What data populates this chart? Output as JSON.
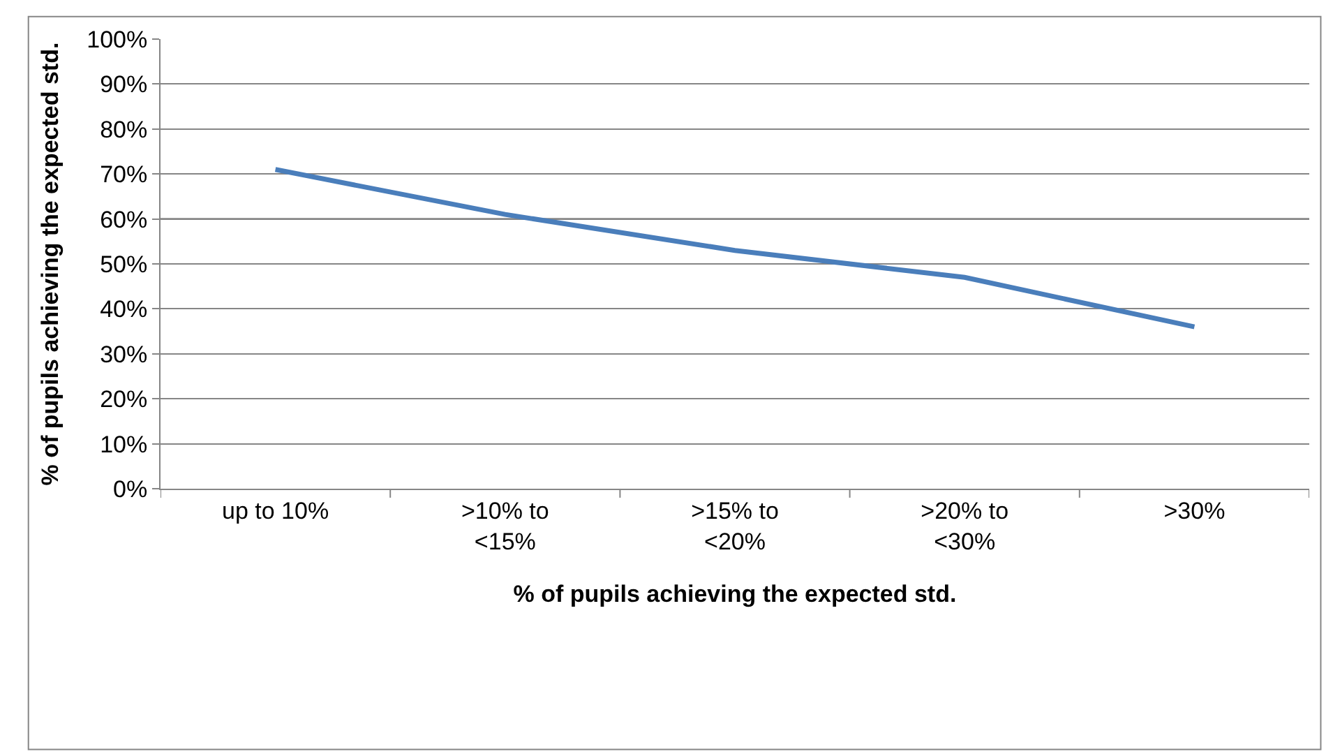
{
  "chart_data": {
    "type": "line",
    "xlabel": "% of pupils achieving the expected std.",
    "ylabel": "% of pupils achieving the expected std.",
    "categories": [
      "up to 10%",
      ">10% to\n<15%",
      ">15% to\n<20%",
      ">20% to\n<30%",
      ">30%"
    ],
    "series": [
      {
        "color": "#4a7ebb",
        "values": [
          71,
          61,
          53,
          47,
          36
        ]
      }
    ],
    "ylim": [
      0,
      100
    ],
    "yticks": [
      {
        "value": 0,
        "label": "0%"
      },
      {
        "value": 10,
        "label": "10%"
      },
      {
        "value": 20,
        "label": "20%"
      },
      {
        "value": 30,
        "label": "30%"
      },
      {
        "value": 40,
        "label": "40%"
      },
      {
        "value": 50,
        "label": "50%"
      },
      {
        "value": 60,
        "label": "60%"
      },
      {
        "value": 70,
        "label": "70%"
      },
      {
        "value": 80,
        "label": "80%"
      },
      {
        "value": 90,
        "label": "90%"
      },
      {
        "value": 100,
        "label": "100%"
      }
    ],
    "ref_lines": [
      {
        "axis": "y",
        "value": 60,
        "color": "#868686"
      }
    ],
    "grid": "y",
    "marker": "none",
    "line_style": "solid"
  }
}
